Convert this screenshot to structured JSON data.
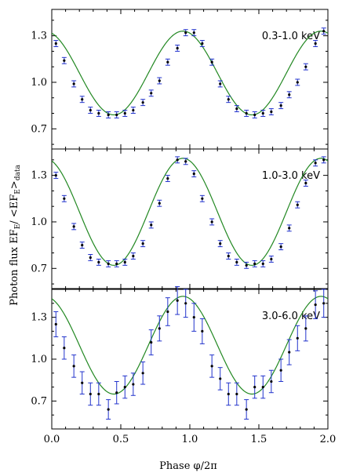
{
  "chart_data": {
    "type": "scatter",
    "xlabel": "Phase φ/2π",
    "ylabel_main": "Photon flux EF",
    "ylabel_sub1": "E",
    "ylabel_mid": "/ <EF",
    "ylabel_sub2": "E",
    "ylabel_end": ">",
    "ylabel_sub3": "data",
    "xlim": [
      0.0,
      2.0
    ],
    "xticks": [
      0.0,
      0.5,
      1.0,
      1.5,
      2.0
    ],
    "xtick_labels": [
      "0.0",
      "0.5",
      "1.0",
      "1.5",
      "2.0"
    ],
    "colors": {
      "points": "#000000",
      "errorbars": "#2233cc",
      "model": "#228822"
    },
    "panels": [
      {
        "label": "0.3-1.0 keV",
        "ylim": [
          0.57,
          1.47
        ],
        "yticks": [
          0.7,
          1.0,
          1.3
        ],
        "ytick_labels": [
          "0.7",
          "1.0",
          "1.3"
        ],
        "model": {
          "mean": 1.06,
          "amp": 0.27,
          "peak_phase": 0.95
        },
        "x": [
          0.03,
          0.09,
          0.16,
          0.22,
          0.28,
          0.34,
          0.41,
          0.47,
          0.53,
          0.59,
          0.66,
          0.72,
          0.78,
          0.84,
          0.91,
          0.97,
          1.03,
          1.09,
          1.16,
          1.22,
          1.28,
          1.34,
          1.41,
          1.47,
          1.53,
          1.59,
          1.66,
          1.72,
          1.78,
          1.84,
          1.91,
          1.97
        ],
        "y": [
          1.25,
          1.14,
          0.99,
          0.89,
          0.82,
          0.8,
          0.79,
          0.79,
          0.8,
          0.82,
          0.87,
          0.93,
          1.01,
          1.13,
          1.22,
          1.32,
          1.32,
          1.25,
          1.13,
          0.99,
          0.89,
          0.83,
          0.8,
          0.79,
          0.8,
          0.81,
          0.85,
          0.92,
          1.0,
          1.1,
          1.25,
          1.33
        ],
        "err": [
          0.02,
          0.02,
          0.02,
          0.02,
          0.02,
          0.02,
          0.02,
          0.02,
          0.02,
          0.02,
          0.02,
          0.02,
          0.02,
          0.02,
          0.02,
          0.02,
          0.02,
          0.02,
          0.02,
          0.02,
          0.02,
          0.02,
          0.02,
          0.02,
          0.02,
          0.02,
          0.02,
          0.02,
          0.02,
          0.02,
          0.02,
          0.02
        ]
      },
      {
        "label": "1.0-3.0 keV",
        "ylim": [
          0.57,
          1.47
        ],
        "yticks": [
          0.7,
          1.0,
          1.3
        ],
        "ytick_labels": [
          "0.7",
          "1.0",
          "1.3"
        ],
        "model": {
          "mean": 1.065,
          "amp": 0.345,
          "peak_phase": 0.95
        },
        "x": [
          0.03,
          0.09,
          0.16,
          0.22,
          0.28,
          0.34,
          0.41,
          0.47,
          0.53,
          0.59,
          0.66,
          0.72,
          0.78,
          0.84,
          0.91,
          0.97,
          1.03,
          1.09,
          1.16,
          1.22,
          1.28,
          1.34,
          1.41,
          1.47,
          1.53,
          1.59,
          1.66,
          1.72,
          1.78,
          1.84,
          1.91,
          1.97
        ],
        "y": [
          1.3,
          1.15,
          0.97,
          0.85,
          0.77,
          0.74,
          0.73,
          0.73,
          0.74,
          0.78,
          0.86,
          0.98,
          1.12,
          1.28,
          1.4,
          1.39,
          1.31,
          1.15,
          1.0,
          0.86,
          0.78,
          0.74,
          0.72,
          0.73,
          0.73,
          0.76,
          0.84,
          0.96,
          1.11,
          1.25,
          1.38,
          1.4
        ],
        "err": [
          0.02,
          0.02,
          0.02,
          0.02,
          0.02,
          0.02,
          0.02,
          0.02,
          0.02,
          0.02,
          0.02,
          0.02,
          0.02,
          0.02,
          0.02,
          0.02,
          0.02,
          0.02,
          0.02,
          0.02,
          0.02,
          0.02,
          0.02,
          0.02,
          0.02,
          0.02,
          0.02,
          0.02,
          0.02,
          0.02,
          0.02,
          0.02
        ]
      },
      {
        "label": "3.0-6.0 keV",
        "ylim": [
          0.5,
          1.5
        ],
        "yticks": [
          0.7,
          1.0,
          1.3
        ],
        "ytick_labels": [
          "0.7",
          "1.0",
          "1.3"
        ],
        "model": {
          "mean": 1.1,
          "amp": 0.35,
          "peak_phase": 0.95
        },
        "x": [
          0.03,
          0.09,
          0.16,
          0.22,
          0.28,
          0.34,
          0.41,
          0.47,
          0.53,
          0.59,
          0.66,
          0.72,
          0.78,
          0.84,
          0.91,
          0.97,
          1.03,
          1.09,
          1.16,
          1.22,
          1.28,
          1.34,
          1.41,
          1.47,
          1.53,
          1.59,
          1.66,
          1.72,
          1.78,
          1.84,
          1.91,
          1.97
        ],
        "y": [
          1.25,
          1.08,
          0.95,
          0.83,
          0.75,
          0.75,
          0.64,
          0.76,
          0.8,
          0.82,
          0.9,
          1.12,
          1.22,
          1.34,
          1.42,
          1.4,
          1.3,
          1.2,
          0.95,
          0.86,
          0.75,
          0.75,
          0.64,
          0.8,
          0.8,
          0.84,
          0.92,
          1.05,
          1.15,
          1.22,
          1.39,
          1.4
        ],
        "err": [
          0.09,
          0.08,
          0.08,
          0.08,
          0.08,
          0.08,
          0.07,
          0.08,
          0.08,
          0.08,
          0.08,
          0.09,
          0.09,
          0.1,
          0.1,
          0.1,
          0.1,
          0.09,
          0.08,
          0.08,
          0.08,
          0.08,
          0.07,
          0.08,
          0.08,
          0.08,
          0.08,
          0.09,
          0.09,
          0.09,
          0.1,
          0.1
        ]
      }
    ]
  }
}
